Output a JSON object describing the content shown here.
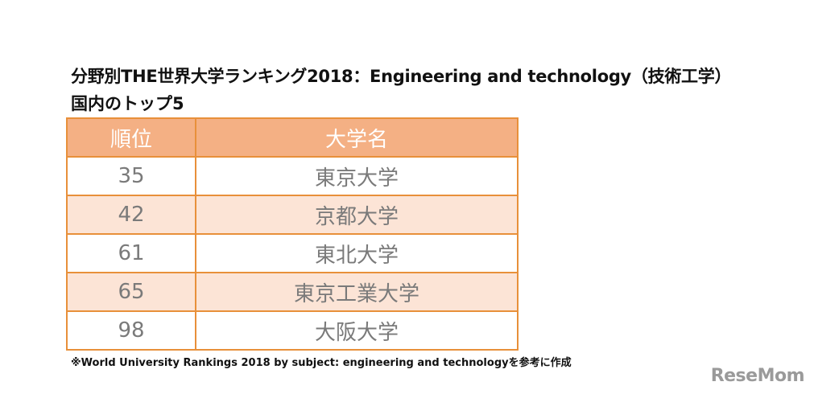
{
  "title": "分野別THE世界大学ランキング2018：Engineering and technology（技術工学）",
  "subtitle": "国内のトップ5",
  "table": {
    "headers": {
      "rank": "順位",
      "name": "大学名"
    },
    "rows": [
      {
        "rank": "35",
        "name": "東京大学"
      },
      {
        "rank": "42",
        "name": "京都大学"
      },
      {
        "rank": "61",
        "name": "東北大学"
      },
      {
        "rank": "65",
        "name": "東京工業大学"
      },
      {
        "rank": "98",
        "name": "大阪大学"
      }
    ]
  },
  "footnote": "※World University Rankings 2018 by subject: engineering and technologyを参考に作成",
  "logo": "ReseMom",
  "colors": {
    "header_bg": "#f4b084",
    "border": "#e8903a",
    "stripe": "#fce4d6",
    "cell_text": "#7a7a7a"
  }
}
